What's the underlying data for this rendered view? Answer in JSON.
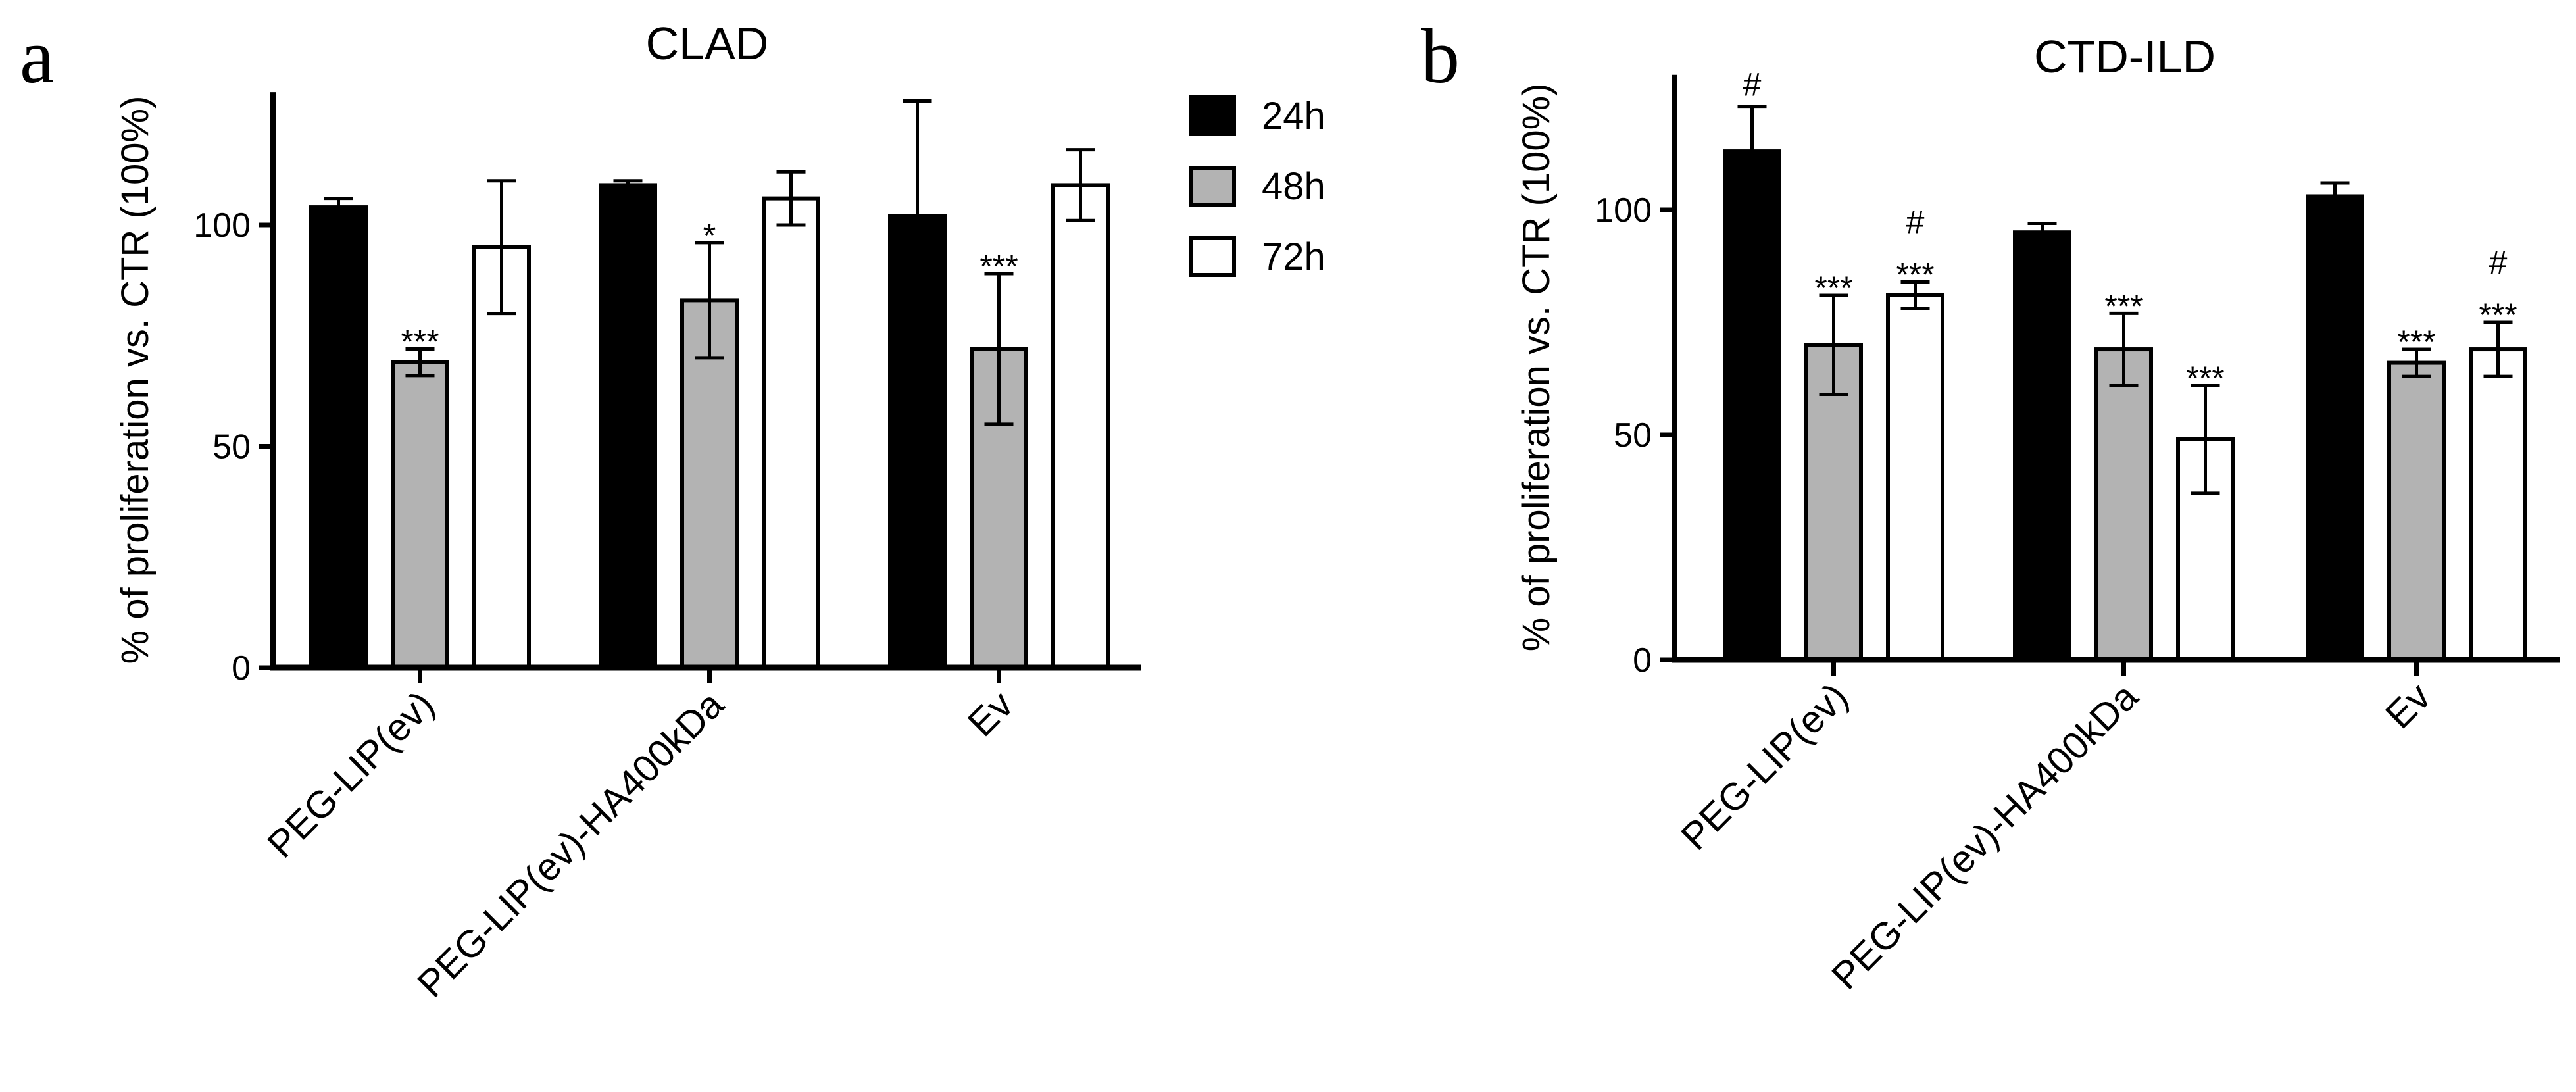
{
  "figure": {
    "legend": [
      {
        "label": "24h",
        "color": "#000000"
      },
      {
        "label": "48h",
        "color": "#b3b3b3"
      },
      {
        "label": "72h",
        "color": "#ffffff"
      }
    ]
  },
  "chart_data": [
    {
      "panel": "a",
      "type": "bar",
      "title": "CLAD",
      "xlabel": "",
      "ylabel": "% of proliferation vs. CTR (100%)",
      "ylim": [
        0,
        130
      ],
      "yticks": [
        0,
        50,
        100
      ],
      "categories": [
        "PEG-LIP(ev)",
        "PEG-LIP(ev)-HA400kDa",
        "Ev"
      ],
      "series": [
        {
          "name": "24h",
          "color": "#000000",
          "values": [
            104,
            109,
            102
          ],
          "errors": [
            2,
            1,
            26
          ],
          "annotations": [
            "",
            "",
            ""
          ]
        },
        {
          "name": "48h",
          "color": "#b3b3b3",
          "values": [
            69,
            83,
            72
          ],
          "errors": [
            3,
            13,
            17
          ],
          "annotations": [
            "***",
            "*",
            "***"
          ]
        },
        {
          "name": "72h",
          "color": "#ffffff",
          "values": [
            95,
            106,
            109
          ],
          "errors": [
            15,
            6,
            8
          ],
          "annotations": [
            "",
            "",
            ""
          ]
        }
      ]
    },
    {
      "panel": "b",
      "type": "bar",
      "title": "CTD-ILD",
      "xlabel": "",
      "ylabel": "% of proliferation vs. CTR (100%)",
      "ylim": [
        0,
        130
      ],
      "yticks": [
        0,
        50,
        100
      ],
      "categories": [
        "PEG-LIP(ev)",
        "PEG-LIP(ev)-HA400kDa",
        "Ev"
      ],
      "series": [
        {
          "name": "24h",
          "color": "#000000",
          "values": [
            113,
            95,
            103
          ],
          "errors": [
            10,
            2,
            3
          ],
          "annotations": [
            "#",
            "",
            ""
          ]
        },
        {
          "name": "48h",
          "color": "#b3b3b3",
          "values": [
            70,
            69,
            66
          ],
          "errors": [
            11,
            8,
            3
          ],
          "annotations": [
            "***",
            "***",
            "***"
          ]
        },
        {
          "name": "72h",
          "color": "#ffffff",
          "values": [
            81,
            49,
            69
          ],
          "errors": [
            3,
            12,
            6
          ],
          "annotations": [
            "#\n***",
            "***",
            "#\n***"
          ]
        }
      ]
    }
  ]
}
